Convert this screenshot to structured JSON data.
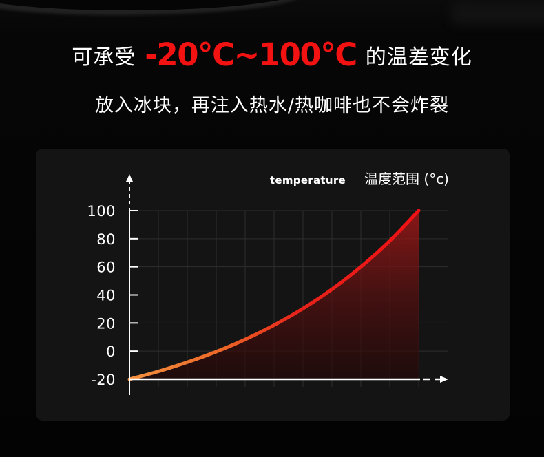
{
  "header": {
    "title_prefix": "可承受",
    "title_highlight": "-20°C~100°C",
    "title_suffix": "的温差变化",
    "highlight_color": "#f31212",
    "subtitle": "放入冰块，再注入热水/热咖啡也不会炸裂"
  },
  "chart_data": {
    "type": "area",
    "title_en": "temperature",
    "title_zh": "温度范围 (°c)",
    "x": [
      0,
      1,
      2,
      3,
      4,
      5,
      6,
      7,
      8,
      9,
      10
    ],
    "values": [
      -20,
      -14.4,
      -7.9,
      -0.4,
      8.3,
      18.5,
      30.3,
      44,
      60,
      78.5,
      100
    ],
    "xlim": [
      0,
      10
    ],
    "ylim": [
      -20,
      100
    ],
    "yticks": [
      100,
      80,
      60,
      40,
      20,
      0,
      -20
    ],
    "ytick_labels": [
      "100",
      "80",
      "60",
      "40",
      "20",
      "0",
      "-20"
    ],
    "grid": true,
    "legend_position": "top-right",
    "axis_style": "dashed-arrow-ends",
    "colors": {
      "line_gradient": [
        "#F29140",
        "#EC6526",
        "#E6231B",
        "#F01114"
      ],
      "fill_top": "#A81818",
      "fill_mid": "#571010",
      "fill_bottom": "#230808",
      "grid": "#2e2e2e",
      "axis": "#ffffff",
      "tick_label": "#ffffff",
      "panel_bg": "#141414"
    }
  }
}
